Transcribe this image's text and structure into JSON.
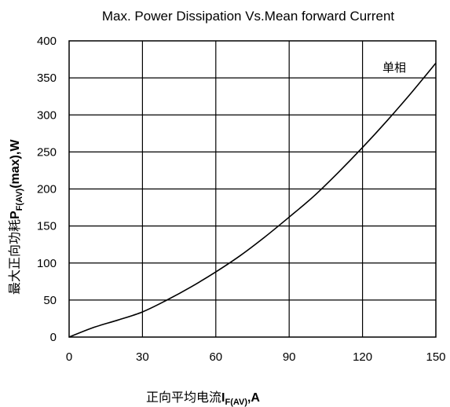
{
  "chart_data": {
    "type": "line",
    "title": "Max. Power Dissipation Vs.Mean forward Current",
    "xlabel": {
      "text": "正向平均电流",
      "symbol": "I",
      "subscript": "F(AV)",
      "unit": ",A"
    },
    "ylabel": {
      "text": "最大正向功耗",
      "symbol": "P",
      "subscript": "F(AV)",
      "suffix": "(max),W"
    },
    "xlim": [
      0,
      150
    ],
    "ylim": [
      0,
      400
    ],
    "x_ticks": [
      0,
      30,
      60,
      90,
      120,
      150
    ],
    "y_ticks": [
      0,
      50,
      100,
      150,
      200,
      250,
      300,
      350,
      400
    ],
    "grid": true,
    "annotation": "单相",
    "series": [
      {
        "x": [
          0,
          10,
          20,
          30,
          40,
          50,
          60,
          70,
          80,
          90,
          100,
          110,
          120,
          130,
          140,
          150
        ],
        "values": [
          0,
          13,
          23,
          34,
          50,
          68,
          88,
          110,
          135,
          162,
          190,
          222,
          256,
          292,
          330,
          370
        ]
      }
    ]
  }
}
